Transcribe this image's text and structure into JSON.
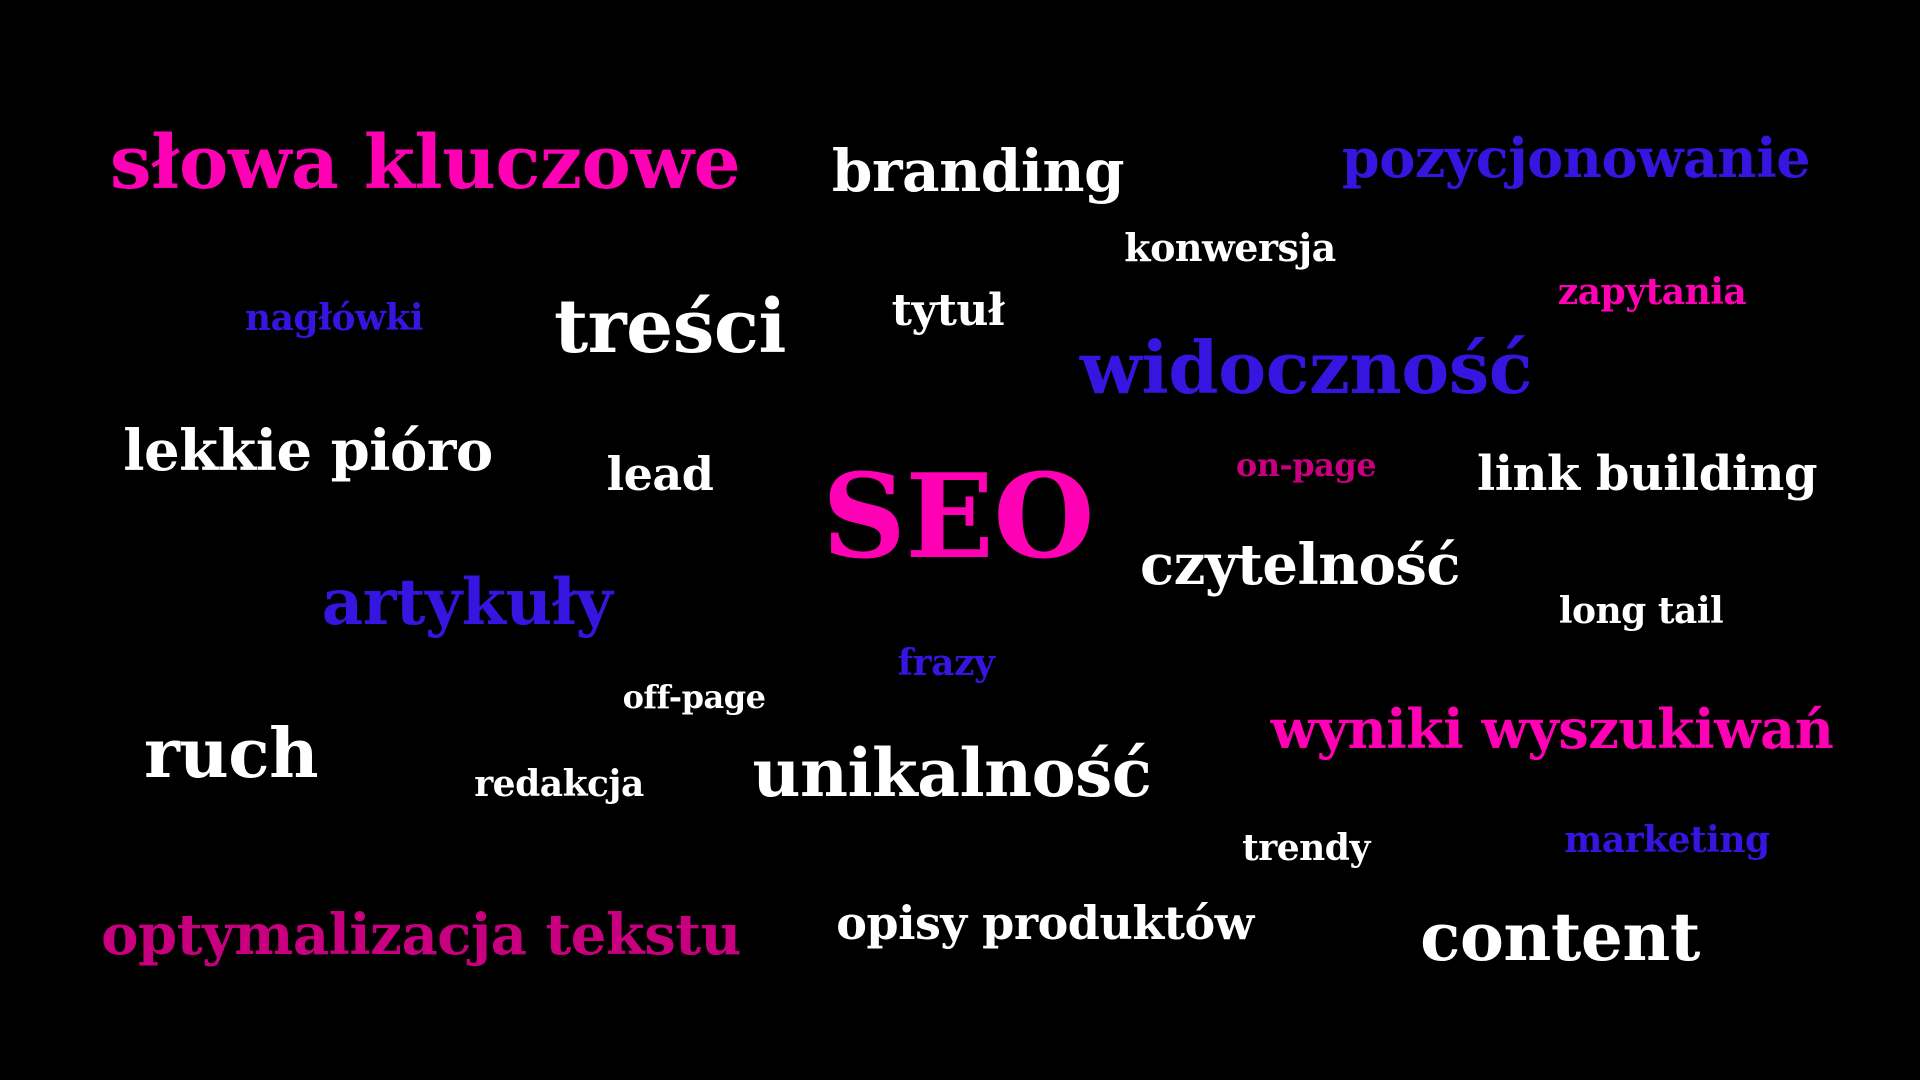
{
  "colors": {
    "background": "#000000",
    "white": "#ffffff",
    "magenta": "#ff00b4",
    "blue": "#3515e0",
    "berry": "#c8007f"
  },
  "words": {
    "slowa_kluczowe": "słowa kluczowe",
    "branding": "branding",
    "pozycjonowanie": "pozycjonowanie",
    "konwersja": "konwersja",
    "zapytania": "zapytania",
    "naglowki": "nagłówki",
    "tresci": "treści",
    "tytul": "tytuł",
    "widocznosc": "widoczność",
    "lekkie_pioro": "lekkie pióro",
    "lead": "lead",
    "seo": "SEO",
    "on_page": "on-page",
    "link_building": "link building",
    "czytelnosc": "czytelność",
    "artykuly": "artykuły",
    "long_tail": "long tail",
    "frazy": "frazy",
    "off_page": "off-page",
    "wyniki_wyszukiwan": "wyniki wyszukiwań",
    "ruch": "ruch",
    "redakcja": "redakcja",
    "unikalnosc": "unikalność",
    "trendy": "trendy",
    "marketing": "marketing",
    "optymalizacja_tekstu": "optymalizacja tekstu",
    "opisy_produktow": "opisy produktów",
    "content": "content"
  }
}
